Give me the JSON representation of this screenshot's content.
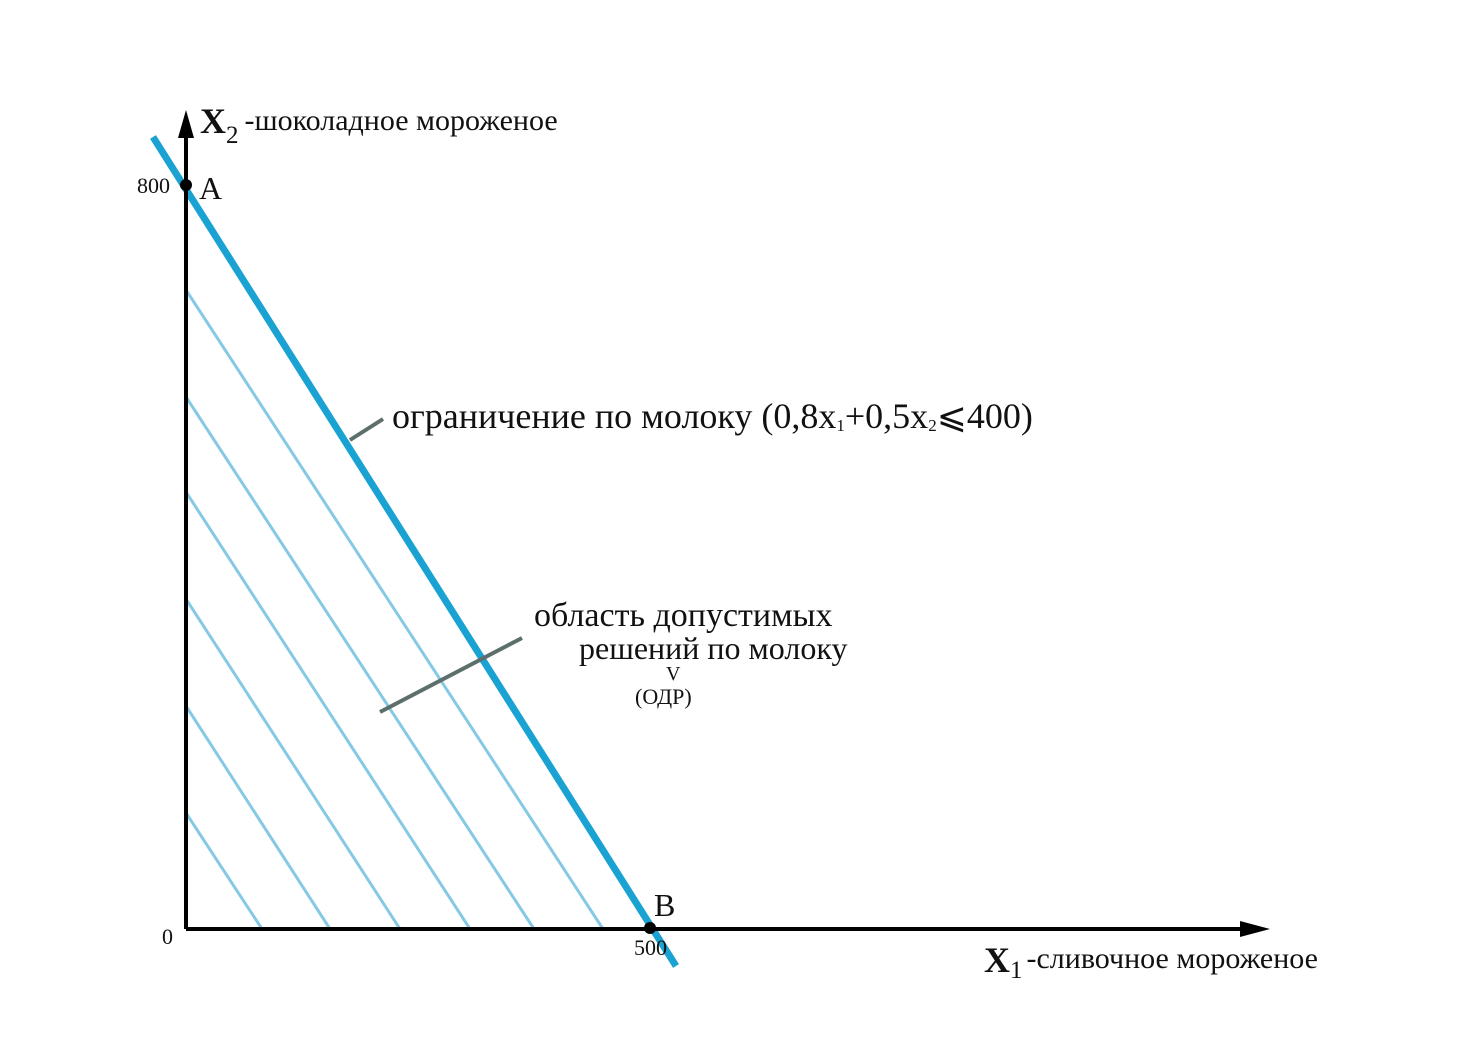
{
  "axes": {
    "x": {
      "letter": "X",
      "subscript": "1",
      "description": "-сливочное мороженое"
    },
    "y": {
      "letter": "X",
      "subscript": "2",
      "description": "-шоколадное мороженое"
    },
    "origin_label": "0"
  },
  "points": {
    "A": {
      "label": "A",
      "tick_label": "800"
    },
    "B": {
      "label": "B",
      "tick_label": "500"
    }
  },
  "constraint": {
    "label_text": "ограничение по молоку (0,8x",
    "sub1": "1",
    "mid_text": "+0,5x",
    "sub2": "2",
    "tail_text": "⩽400)"
  },
  "region": {
    "line1": "область допустимых",
    "line2": "решений по молоку",
    "mark": "V",
    "abbr": "(ОДР)"
  },
  "colors": {
    "constraint_line": "#1aa3d2",
    "hatch": "#86c9e4",
    "leader": "#5d6f6c",
    "axes": "#000000"
  },
  "chart_data": {
    "type": "line",
    "x_intercept": 500,
    "y_intercept": 800,
    "constraint_coefficients": {
      "x1": 0.8,
      "x2": 0.5,
      "rhs": 400
    },
    "constraint_operator": "<=",
    "feasible_region": "hatched triangle below the constraint line",
    "grid": false
  }
}
